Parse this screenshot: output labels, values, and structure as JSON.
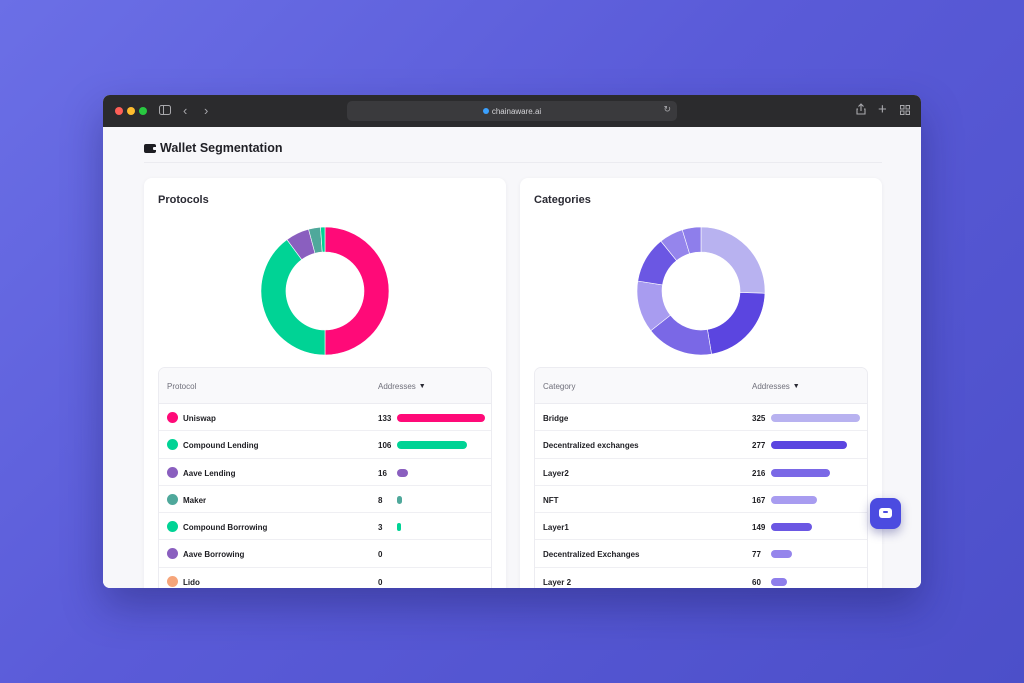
{
  "browser": {
    "url": "chainaware.ai"
  },
  "page": {
    "title": "Wallet Segmentation"
  },
  "protocols": {
    "title": "Protocols",
    "col_name": "Protocol",
    "col_addresses": "Addresses",
    "rows": [
      {
        "name": "Uniswap",
        "count": "133",
        "value": 133,
        "color": "#ff0a78",
        "icon": "uniswap-icon"
      },
      {
        "name": "Compound Lending",
        "count": "106",
        "value": 106,
        "color": "#00d395",
        "icon": "compound-icon"
      },
      {
        "name": "Aave Lending",
        "count": "16",
        "value": 16,
        "color": "#8a5fbf",
        "icon": "aave-icon"
      },
      {
        "name": "Maker",
        "count": "8",
        "value": 8,
        "color": "#4fa89b",
        "icon": "maker-icon"
      },
      {
        "name": "Compound Borrowing",
        "count": "3",
        "value": 3,
        "color": "#00d395",
        "icon": "compound-icon"
      },
      {
        "name": "Aave Borrowing",
        "count": "0",
        "value": 0,
        "color": "#8a5fbf",
        "icon": "aave-icon"
      },
      {
        "name": "Lido",
        "count": "0",
        "value": 0,
        "color": "#f6a57a",
        "icon": "lido-icon"
      }
    ]
  },
  "categories": {
    "title": "Categories",
    "col_name": "Category",
    "col_addresses": "Addresses",
    "rows": [
      {
        "name": "Bridge",
        "count": "325",
        "value": 325,
        "color": "#b8b2f0"
      },
      {
        "name": "Decentralized exchanges",
        "count": "277",
        "value": 277,
        "color": "#5b45e0"
      },
      {
        "name": "Layer2",
        "count": "216",
        "value": 216,
        "color": "#7a68e6"
      },
      {
        "name": "NFT",
        "count": "167",
        "value": 167,
        "color": "#a89cf0"
      },
      {
        "name": "Layer1",
        "count": "149",
        "value": 149,
        "color": "#6b57e3"
      },
      {
        "name": "Decentralized Exchanges",
        "count": "77",
        "value": 77,
        "color": "#9585ec"
      },
      {
        "name": "Layer 2",
        "count": "60",
        "value": 60,
        "color": "#8e7eeb"
      }
    ]
  }
}
